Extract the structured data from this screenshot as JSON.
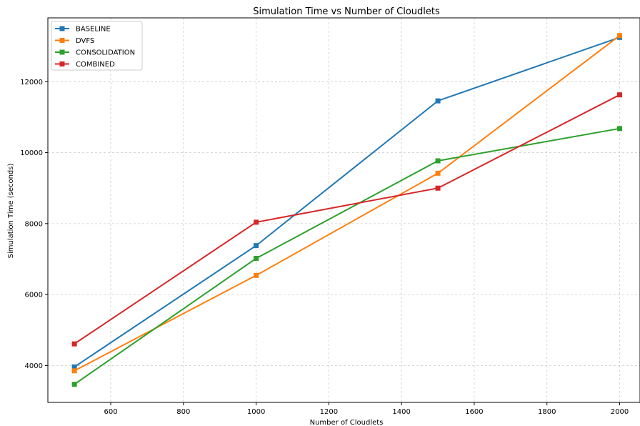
{
  "chart_data": {
    "type": "line",
    "title": "Simulation Time vs Number of Cloudlets",
    "xlabel": "Number of Cloudlets",
    "ylabel": "Simulation Time (seconds)",
    "x": [
      500,
      1000,
      1500,
      2000
    ],
    "xlim": [
      427,
      2056
    ],
    "ylim": [
      2960,
      13800
    ],
    "xticks": [
      600,
      800,
      1000,
      1200,
      1400,
      1600,
      1800,
      2000
    ],
    "yticks": [
      4000,
      6000,
      8000,
      10000,
      12000
    ],
    "grid": true,
    "legend_position": "top-left",
    "series": [
      {
        "name": "BASELINE",
        "color": "#1f77b4",
        "values": [
          3960,
          7380,
          11460,
          13250
        ]
      },
      {
        "name": "DVFS",
        "color": "#ff7f0e",
        "values": [
          3850,
          6540,
          9420,
          13300
        ]
      },
      {
        "name": "CONSOLIDATION",
        "color": "#2ca02c",
        "values": [
          3470,
          7020,
          9770,
          10680
        ]
      },
      {
        "name": "COMBINED",
        "color": "#d62728",
        "values": [
          4610,
          8040,
          9000,
          11630
        ]
      }
    ]
  }
}
